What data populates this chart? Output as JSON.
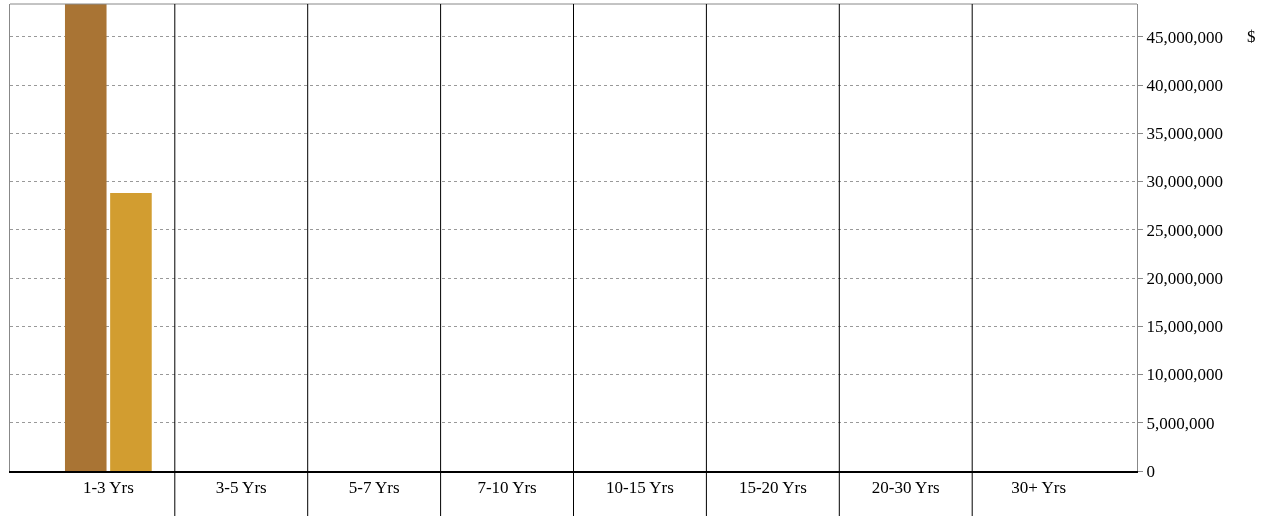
{
  "chart_data": {
    "type": "bar",
    "ylabel": "$",
    "categories": [
      "1-3 Yrs",
      "3-5 Yrs",
      "5-7 Yrs",
      "7-10 Yrs",
      "10-15 Yrs",
      "15-20 Yrs",
      "20-30 Yrs",
      "30+ Yrs"
    ],
    "series": [
      {
        "color": "#a97434",
        "values": [
          48400000,
          null,
          null,
          null,
          null,
          null,
          null,
          null
        ]
      },
      {
        "color": "#d29d30",
        "values": [
          28800000,
          null,
          null,
          null,
          null,
          null,
          null,
          null
        ]
      }
    ],
    "ylim": [
      0,
      48400000
    ],
    "yticks": [
      0,
      {
        "value": 5000000,
        "label": "5,000,000"
      },
      {
        "value": 10000000,
        "label": "10,000,000"
      },
      {
        "value": 15000000,
        "label": "15,000,000"
      },
      {
        "value": 20000000,
        "label": "20,000,000"
      },
      {
        "value": 25000000,
        "label": "25,000,000"
      },
      {
        "value": 30000000,
        "label": "30,000,000"
      },
      {
        "value": 35000000,
        "label": "35,000,000"
      },
      {
        "value": 40000000,
        "label": "40,000,000"
      },
      {
        "value": 45000000,
        "label": "45,000,000"
      }
    ],
    "grid": true
  }
}
